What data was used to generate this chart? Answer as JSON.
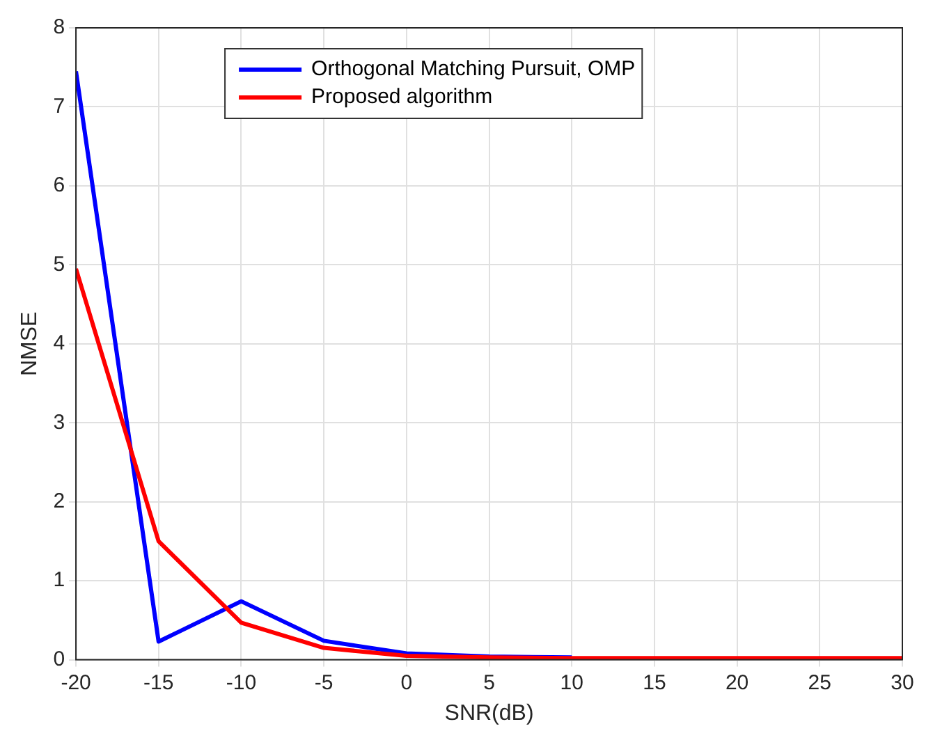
{
  "chart_data": {
    "type": "line",
    "xlabel": "SNR(dB)",
    "ylabel": "NMSE",
    "x": [
      -20,
      -15,
      -10,
      -5,
      0,
      5,
      10,
      15,
      20,
      25,
      30
    ],
    "series": [
      {
        "name": "Orthogonal Matching Pursuit, OMP",
        "color": "#0000ff",
        "values": [
          7.45,
          0.23,
          0.74,
          0.24,
          0.08,
          0.04,
          0.03,
          null,
          null,
          null,
          null
        ]
      },
      {
        "name": "Proposed algorithm",
        "color": "#ff0000",
        "values": [
          4.95,
          1.5,
          0.47,
          0.15,
          0.05,
          0.03,
          0.02,
          0.02,
          0.02,
          0.02,
          0.02
        ]
      }
    ],
    "xlim": [
      -20,
      30
    ],
    "xticks": [
      -20,
      -15,
      -10,
      -5,
      0,
      5,
      10,
      15,
      20,
      25,
      30
    ],
    "ylim": [
      0,
      8
    ],
    "yticks": [
      0,
      1,
      2,
      3,
      4,
      5,
      6,
      7,
      8
    ],
    "grid": true,
    "legend": "top left",
    "marker": "none",
    "line_style": "solid"
  }
}
